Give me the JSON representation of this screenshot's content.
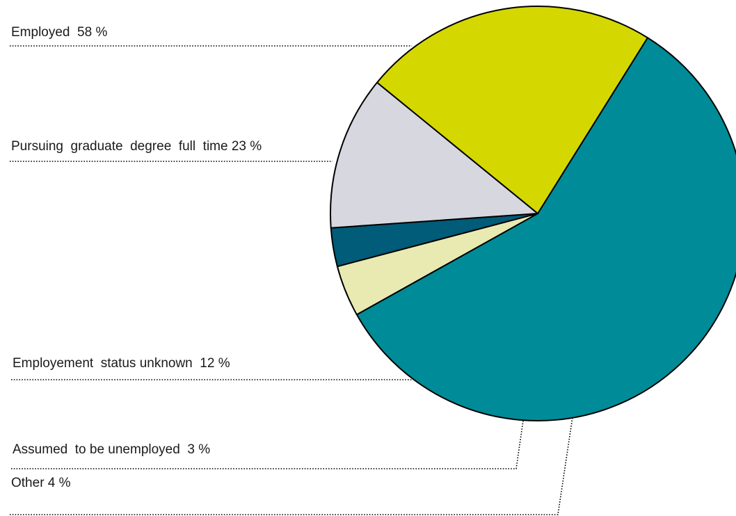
{
  "chart_data": {
    "type": "pie",
    "title": "",
    "start_angle_deg": -58,
    "direction": "clockwise",
    "legend": "none",
    "slices": [
      {
        "name": "Employed",
        "label": "Employed  58 %",
        "value": 58,
        "color": "#008b98"
      },
      {
        "name": "Other",
        "label": "Other 4 %",
        "value": 4,
        "color": "#e8eab2"
      },
      {
        "name": "Assumed to be unemployed",
        "label": "Assumed  to be unemployed  3 %",
        "value": 3,
        "color": "#005c78"
      },
      {
        "name": "Employement status unknown",
        "label": "Employement  status unknown  12 %",
        "value": 12,
        "color": "#d6d7df"
      },
      {
        "name": "Pursuing graduate degree full time",
        "label": "Pursuing  graduate  degree  full  time 23 %",
        "value": 23,
        "color": "#d4d800"
      }
    ]
  }
}
